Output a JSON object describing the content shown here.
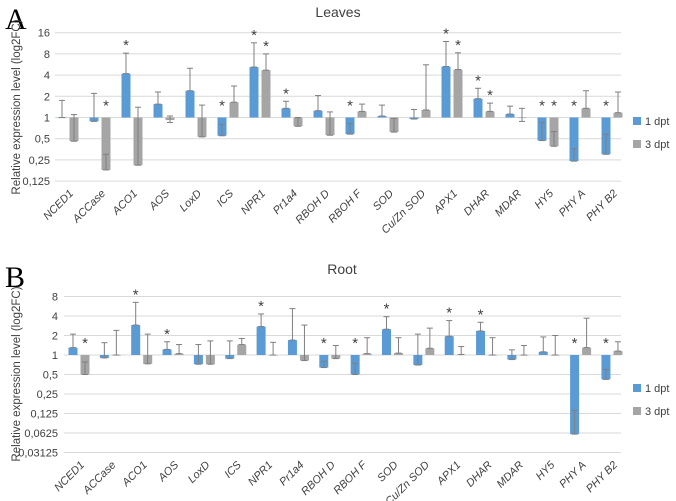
{
  "figure": {
    "sig_marker": "*",
    "colors": {
      "bar_1dpt": "#5B9BD5",
      "bar_3dpt": "#A5A5A5",
      "error_bar": "#7F7F7F",
      "gridline": "#D9D9D9",
      "text": "#404040"
    },
    "legend": [
      {
        "label": "1 dpt"
      },
      {
        "label": "3 dpt"
      }
    ]
  },
  "chart_data": [
    {
      "type": "bar",
      "panel": "A",
      "title": "Leaves",
      "ylabel": "Relative expression level (log2FC)",
      "yscale": "log2",
      "baseline": 1,
      "legend_position": "right",
      "grid": true,
      "yticks": [
        {
          "label": "16",
          "value": 16
        },
        {
          "label": "8",
          "value": 8
        },
        {
          "label": "4",
          "value": 4
        },
        {
          "label": "2",
          "value": 2
        },
        {
          "label": "1",
          "value": 1
        },
        {
          "label": "0,5",
          "value": 0.5
        },
        {
          "label": "0,25",
          "value": 0.25
        },
        {
          "label": "0,125",
          "value": 0.125
        }
      ],
      "categories": [
        "NCED1",
        "ACCase",
        "ACO1",
        "AOS",
        "LoxD",
        "ICS",
        "NPR1",
        "Pr1a4",
        "RBOH D",
        "RBOH F",
        "SOD",
        "Cu/Zn SOD",
        "APX1",
        "DHAR",
        "MDAR",
        "HY5",
        "PHY A",
        "PHY B2"
      ],
      "series": [
        {
          "name": "1 dpt",
          "bars": [
            {
              "v": 1.0,
              "w": [
                1.0,
                1.75
              ],
              "sig": false
            },
            {
              "v": 0.88,
              "w": [
                0.88,
                2.2
              ],
              "sig": false
            },
            {
              "v": 4.2,
              "w": [
                4.2,
                8.2
              ],
              "sig": true
            },
            {
              "v": 1.55,
              "w": [
                1.55,
                2.3
              ],
              "sig": false
            },
            {
              "v": 2.4,
              "w": [
                2.4,
                5.0
              ],
              "sig": false
            },
            {
              "v": 0.55,
              "w": [
                0.55,
                0.8
              ],
              "sig": true
            },
            {
              "v": 5.2,
              "w": [
                5.2,
                11.5
              ],
              "sig": true
            },
            {
              "v": 1.35,
              "w": [
                1.35,
                1.7
              ],
              "sig": true
            },
            {
              "v": 1.25,
              "w": [
                1.25,
                2.05
              ],
              "sig": false
            },
            {
              "v": 0.58,
              "w": [
                0.58,
                0.82
              ],
              "sig": true
            },
            {
              "v": 1.05,
              "w": [
                1.05,
                1.5
              ],
              "sig": false
            },
            {
              "v": 0.95,
              "w": [
                0.95,
                1.3
              ],
              "sig": false
            },
            {
              "v": 5.3,
              "w": [
                5.3,
                12.0
              ],
              "sig": true
            },
            {
              "v": 1.85,
              "w": [
                1.85,
                2.6
              ],
              "sig": true
            },
            {
              "v": 1.12,
              "w": [
                1.12,
                1.45
              ],
              "sig": false
            },
            {
              "v": 0.47,
              "w": [
                0.47,
                0.85
              ],
              "sig": true
            },
            {
              "v": 0.24,
              "w": [
                0.24,
                0.36
              ],
              "sig": true
            },
            {
              "v": 0.3,
              "w": [
                0.3,
                0.58
              ],
              "sig": true
            }
          ]
        },
        {
          "name": "3 dpt",
          "bars": [
            {
              "v": 0.46,
              "w": [
                0.46,
                1.1
              ],
              "sig": false
            },
            {
              "v": 0.18,
              "w": [
                0.18,
                0.3
              ],
              "sig": true
            },
            {
              "v": 0.21,
              "w": [
                0.21,
                1.4
              ],
              "sig": false
            },
            {
              "v": 0.92,
              "w": [
                0.85,
                1.05
              ],
              "sig": false
            },
            {
              "v": 0.53,
              "w": [
                0.53,
                1.5
              ],
              "sig": false
            },
            {
              "v": 1.65,
              "w": [
                1.65,
                2.8
              ],
              "sig": false
            },
            {
              "v": 4.7,
              "w": [
                4.7,
                8.0
              ],
              "sig": true
            },
            {
              "v": 0.75,
              "w": [
                0.75,
                1.0
              ],
              "sig": false
            },
            {
              "v": 0.56,
              "w": [
                0.56,
                1.2
              ],
              "sig": false
            },
            {
              "v": 1.22,
              "w": [
                1.22,
                1.55
              ],
              "sig": false
            },
            {
              "v": 0.62,
              "w": [
                0.62,
                0.97
              ],
              "sig": false
            },
            {
              "v": 1.28,
              "w": [
                1.28,
                5.6
              ],
              "sig": false
            },
            {
              "v": 4.8,
              "w": [
                4.8,
                8.3
              ],
              "sig": true
            },
            {
              "v": 1.22,
              "w": [
                1.22,
                1.6
              ],
              "sig": true
            },
            {
              "v": 1.0,
              "w": [
                0.88,
                1.35
              ],
              "sig": false
            },
            {
              "v": 0.39,
              "w": [
                0.39,
                0.63
              ],
              "sig": true
            },
            {
              "v": 1.35,
              "w": [
                1.35,
                2.4
              ],
              "sig": false
            },
            {
              "v": 1.17,
              "w": [
                1.17,
                2.3
              ],
              "sig": false
            }
          ]
        }
      ]
    },
    {
      "type": "bar",
      "panel": "B",
      "title": "Root",
      "ylabel": "Relative expression level (log2FC)",
      "yscale": "log2",
      "baseline": 1,
      "legend_position": "right",
      "grid": true,
      "yticks": [
        {
          "label": "8",
          "value": 8
        },
        {
          "label": "4",
          "value": 4
        },
        {
          "label": "2",
          "value": 2
        },
        {
          "label": "1",
          "value": 1
        },
        {
          "label": "0,5",
          "value": 0.5
        },
        {
          "label": "0,25",
          "value": 0.25
        },
        {
          "label": "0,125",
          "value": 0.125
        },
        {
          "label": "0,0625",
          "value": 0.0625
        },
        {
          "label": "0,03125",
          "value": 0.03125
        }
      ],
      "categories": [
        "NCED1",
        "ACCase",
        "ACO1",
        "AOS",
        "LoxD",
        "ICS",
        "NPR1",
        "Pr1a4",
        "RBOH D",
        "RBOH F",
        "SOD",
        "Cu/Zn SOD",
        "APX1",
        "DHAR",
        "MDAR",
        "HY5",
        "PHY A",
        "PHY B2"
      ],
      "series": [
        {
          "name": "1 dpt",
          "bars": [
            {
              "v": 1.3,
              "w": [
                1.3,
                2.1
              ],
              "sig": false
            },
            {
              "v": 0.9,
              "w": [
                0.9,
                1.55
              ],
              "sig": false
            },
            {
              "v": 2.9,
              "w": [
                2.9,
                6.5
              ],
              "sig": true
            },
            {
              "v": 1.22,
              "w": [
                1.22,
                1.6
              ],
              "sig": true
            },
            {
              "v": 0.72,
              "w": [
                0.72,
                1.45
              ],
              "sig": false
            },
            {
              "v": 0.88,
              "w": [
                0.88,
                1.65
              ],
              "sig": false
            },
            {
              "v": 2.75,
              "w": [
                2.75,
                4.3
              ],
              "sig": true
            },
            {
              "v": 1.7,
              "w": [
                1.7,
                5.2
              ],
              "sig": false
            },
            {
              "v": 0.64,
              "w": [
                0.64,
                0.8
              ],
              "sig": true
            },
            {
              "v": 0.5,
              "w": [
                0.5,
                0.75
              ],
              "sig": true
            },
            {
              "v": 2.5,
              "w": [
                2.5,
                3.9
              ],
              "sig": true
            },
            {
              "v": 0.7,
              "w": [
                0.7,
                2.1
              ],
              "sig": false
            },
            {
              "v": 1.95,
              "w": [
                1.95,
                3.4
              ],
              "sig": true
            },
            {
              "v": 2.35,
              "w": [
                2.35,
                3.2
              ],
              "sig": true
            },
            {
              "v": 0.85,
              "w": [
                0.85,
                1.2
              ],
              "sig": false
            },
            {
              "v": 1.12,
              "w": [
                1.12,
                1.9
              ],
              "sig": false
            },
            {
              "v": 0.06,
              "w": [
                0.06,
                0.14
              ],
              "sig": true
            },
            {
              "v": 0.42,
              "w": [
                0.42,
                0.6
              ],
              "sig": true
            }
          ]
        },
        {
          "name": "3 dpt",
          "bars": [
            {
              "v": 0.5,
              "w": [
                0.5,
                0.78
              ],
              "sig": true
            },
            {
              "v": 1.0,
              "w": [
                1.0,
                2.4
              ],
              "sig": false
            },
            {
              "v": 0.73,
              "w": [
                0.73,
                2.1
              ],
              "sig": false
            },
            {
              "v": 1.05,
              "w": [
                1.05,
                1.45
              ],
              "sig": false
            },
            {
              "v": 0.72,
              "w": [
                0.72,
                1.65
              ],
              "sig": false
            },
            {
              "v": 1.45,
              "w": [
                1.45,
                1.8
              ],
              "sig": false
            },
            {
              "v": 1.0,
              "w": [
                1.0,
                1.57
              ],
              "sig": false
            },
            {
              "v": 0.82,
              "w": [
                0.82,
                2.9
              ],
              "sig": false
            },
            {
              "v": 0.88,
              "w": [
                0.88,
                1.4
              ],
              "sig": false
            },
            {
              "v": 1.05,
              "w": [
                1.05,
                1.85
              ],
              "sig": false
            },
            {
              "v": 1.07,
              "w": [
                1.07,
                1.85
              ],
              "sig": false
            },
            {
              "v": 1.27,
              "w": [
                1.27,
                2.6
              ],
              "sig": false
            },
            {
              "v": 1.02,
              "w": [
                1.02,
                1.35
              ],
              "sig": false
            },
            {
              "v": 1.0,
              "w": [
                1.0,
                1.85
              ],
              "sig": false
            },
            {
              "v": 1.0,
              "w": [
                1.0,
                1.4
              ],
              "sig": false
            },
            {
              "v": 1.0,
              "w": [
                1.0,
                2.0
              ],
              "sig": false
            },
            {
              "v": 1.3,
              "w": [
                1.3,
                3.7
              ],
              "sig": false
            },
            {
              "v": 1.15,
              "w": [
                1.15,
                1.6
              ],
              "sig": false
            }
          ]
        }
      ]
    }
  ]
}
